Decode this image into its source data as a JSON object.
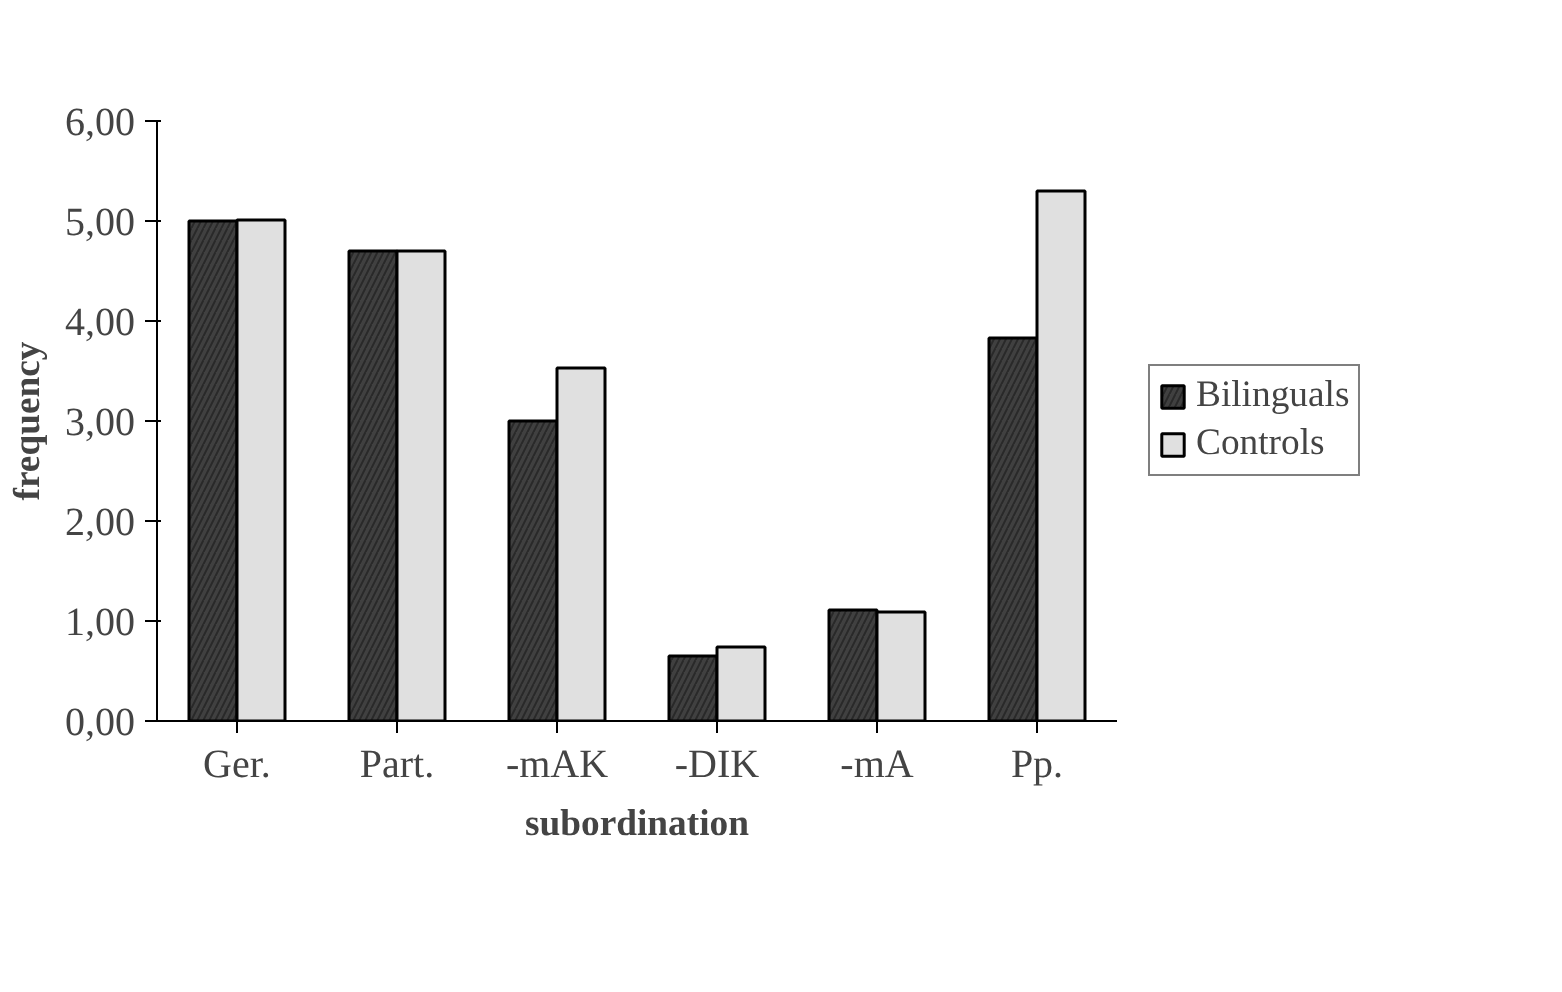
{
  "chart_data": {
    "type": "bar",
    "xlabel": "subordination",
    "ylabel": "frequency",
    "categories": [
      "Ger.",
      "Part.",
      "-mAK",
      "-DIK",
      "-mA",
      "Pp."
    ],
    "series": [
      {
        "name": "Bilinguals",
        "color": "#404040",
        "values": [
          5.0,
          4.7,
          3.0,
          0.65,
          1.11,
          3.83
        ]
      },
      {
        "name": "Controls",
        "color": "#e0e0e0",
        "values": [
          5.01,
          4.7,
          3.53,
          0.74,
          1.09,
          5.3
        ]
      }
    ],
    "ylim": [
      0,
      6
    ],
    "yticks": [
      {
        "value": 0,
        "label": "0,00"
      },
      {
        "value": 1,
        "label": "1,00"
      },
      {
        "value": 2,
        "label": "2,00"
      },
      {
        "value": 3,
        "label": "3,00"
      },
      {
        "value": 4,
        "label": "4,00"
      },
      {
        "value": 5,
        "label": "5,00"
      },
      {
        "value": 6,
        "label": "6,00"
      }
    ],
    "grid": false,
    "legend": "right"
  }
}
